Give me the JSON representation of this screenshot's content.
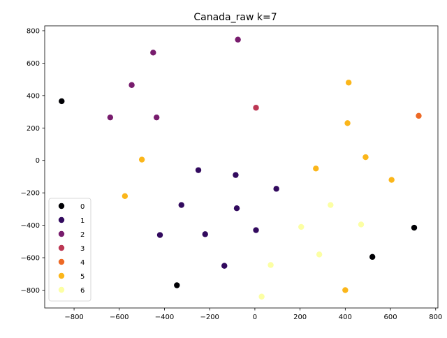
{
  "chart_data": {
    "type": "scatter",
    "title": "Canada_raw k=7",
    "xlabel": "",
    "ylabel": "",
    "xlim": [
      -930,
      810
    ],
    "ylim": [
      -910,
      830
    ],
    "x_ticks": [
      -800,
      -600,
      -400,
      -200,
      0,
      200,
      400,
      600,
      800
    ],
    "y_ticks": [
      -800,
      -600,
      -400,
      -200,
      0,
      200,
      400,
      600,
      800
    ],
    "grid": false,
    "legend_position": "lower-left",
    "series": [
      {
        "name": "0",
        "color": "#000004",
        "points": [
          [
            -855,
            365
          ],
          [
            -345,
            -770
          ],
          [
            520,
            -595
          ],
          [
            705,
            -415
          ]
        ]
      },
      {
        "name": "1",
        "color": "#320a5e",
        "points": [
          [
            -250,
            -60
          ],
          [
            -85,
            -90
          ],
          [
            95,
            -175
          ],
          [
            -325,
            -275
          ],
          [
            -80,
            -295
          ],
          [
            5,
            -430
          ],
          [
            -420,
            -460
          ],
          [
            -220,
            -455
          ],
          [
            -135,
            -650
          ]
        ]
      },
      {
        "name": "2",
        "color": "#781c6d",
        "points": [
          [
            -75,
            745
          ],
          [
            -450,
            665
          ],
          [
            -545,
            465
          ],
          [
            -640,
            265
          ],
          [
            -435,
            265
          ]
        ]
      },
      {
        "name": "3",
        "color": "#bc3754",
        "points": [
          [
            5,
            325
          ]
        ]
      },
      {
        "name": "4",
        "color": "#ed6925",
        "points": [
          [
            725,
            275
          ]
        ]
      },
      {
        "name": "5",
        "color": "#fbb61a",
        "points": [
          [
            415,
            480
          ],
          [
            410,
            230
          ],
          [
            -500,
            5
          ],
          [
            270,
            -50
          ],
          [
            490,
            20
          ],
          [
            605,
            -120
          ],
          [
            -575,
            -220
          ],
          [
            400,
            -800
          ]
        ]
      },
      {
        "name": "6",
        "color": "#fcffa4",
        "points": [
          [
            335,
            -275
          ],
          [
            470,
            -395
          ],
          [
            205,
            -410
          ],
          [
            285,
            -580
          ],
          [
            70,
            -645
          ],
          [
            30,
            -840
          ]
        ]
      }
    ]
  }
}
